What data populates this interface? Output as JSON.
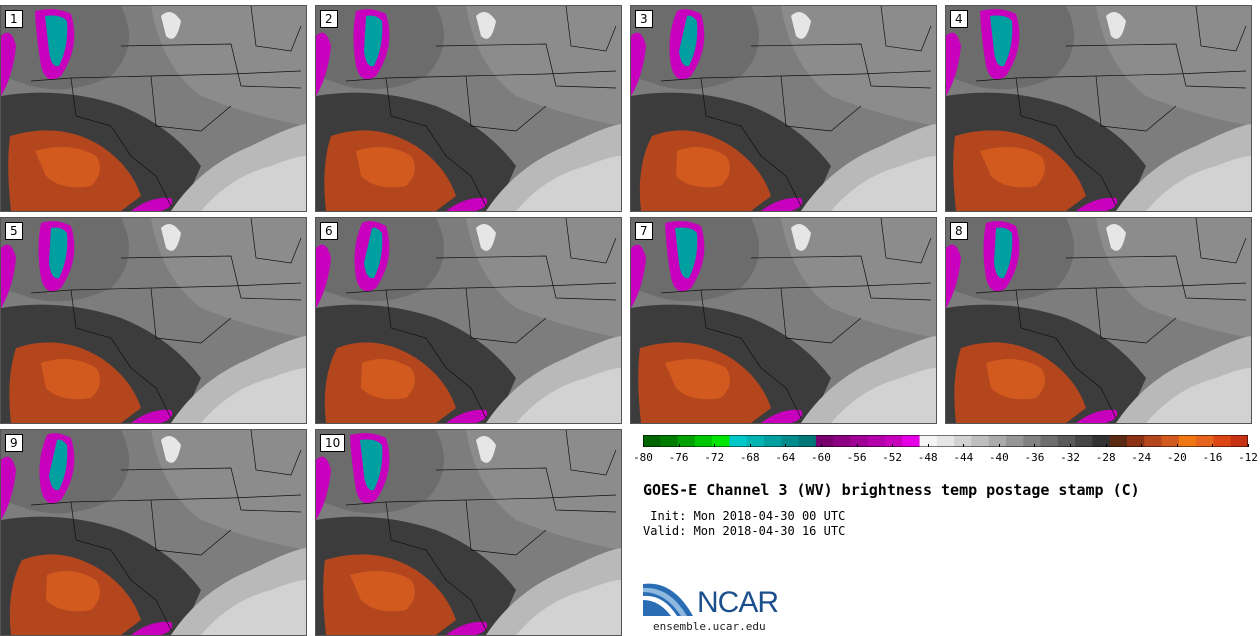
{
  "panels": [
    {
      "label": "1"
    },
    {
      "label": "2"
    },
    {
      "label": "3"
    },
    {
      "label": "4"
    },
    {
      "label": "5"
    },
    {
      "label": "6"
    },
    {
      "label": "7"
    },
    {
      "label": "8"
    },
    {
      "label": "9"
    },
    {
      "label": "10"
    }
  ],
  "colorbar": {
    "colors": [
      "#006400",
      "#007d00",
      "#00a000",
      "#00c800",
      "#00e600",
      "#00c8c8",
      "#00b4b4",
      "#00a0a0",
      "#008c8c",
      "#007878",
      "#78006e",
      "#8c0082",
      "#a00096",
      "#b400aa",
      "#c800be",
      "#e600e6",
      "#f5f5f5",
      "#e6e6e6",
      "#d2d2d2",
      "#bebebe",
      "#aaaaaa",
      "#969696",
      "#828282",
      "#6e6e6e",
      "#5a5a5a",
      "#464646",
      "#323232",
      "#5a2a14",
      "#8c3214",
      "#b4461e",
      "#d25a1e",
      "#f07814",
      "#e6641e",
      "#dc4614",
      "#c83214"
    ],
    "tick_labels": [
      "-80",
      "-76",
      "-72",
      "-68",
      "-64",
      "-60",
      "-56",
      "-52",
      "-48",
      "-44",
      "-40",
      "-36",
      "-32",
      "-28",
      "-24",
      "-20",
      "-16",
      "-12"
    ]
  },
  "title": "GOES-E Channel 3 (WV) brightness temp postage stamp (C)",
  "init": " Init: Mon 2018-04-30 00 UTC",
  "valid": "Valid: Mon 2018-04-30 16 UTC",
  "logo_text": "NCAR",
  "site": "ensemble.ucar.edu"
}
